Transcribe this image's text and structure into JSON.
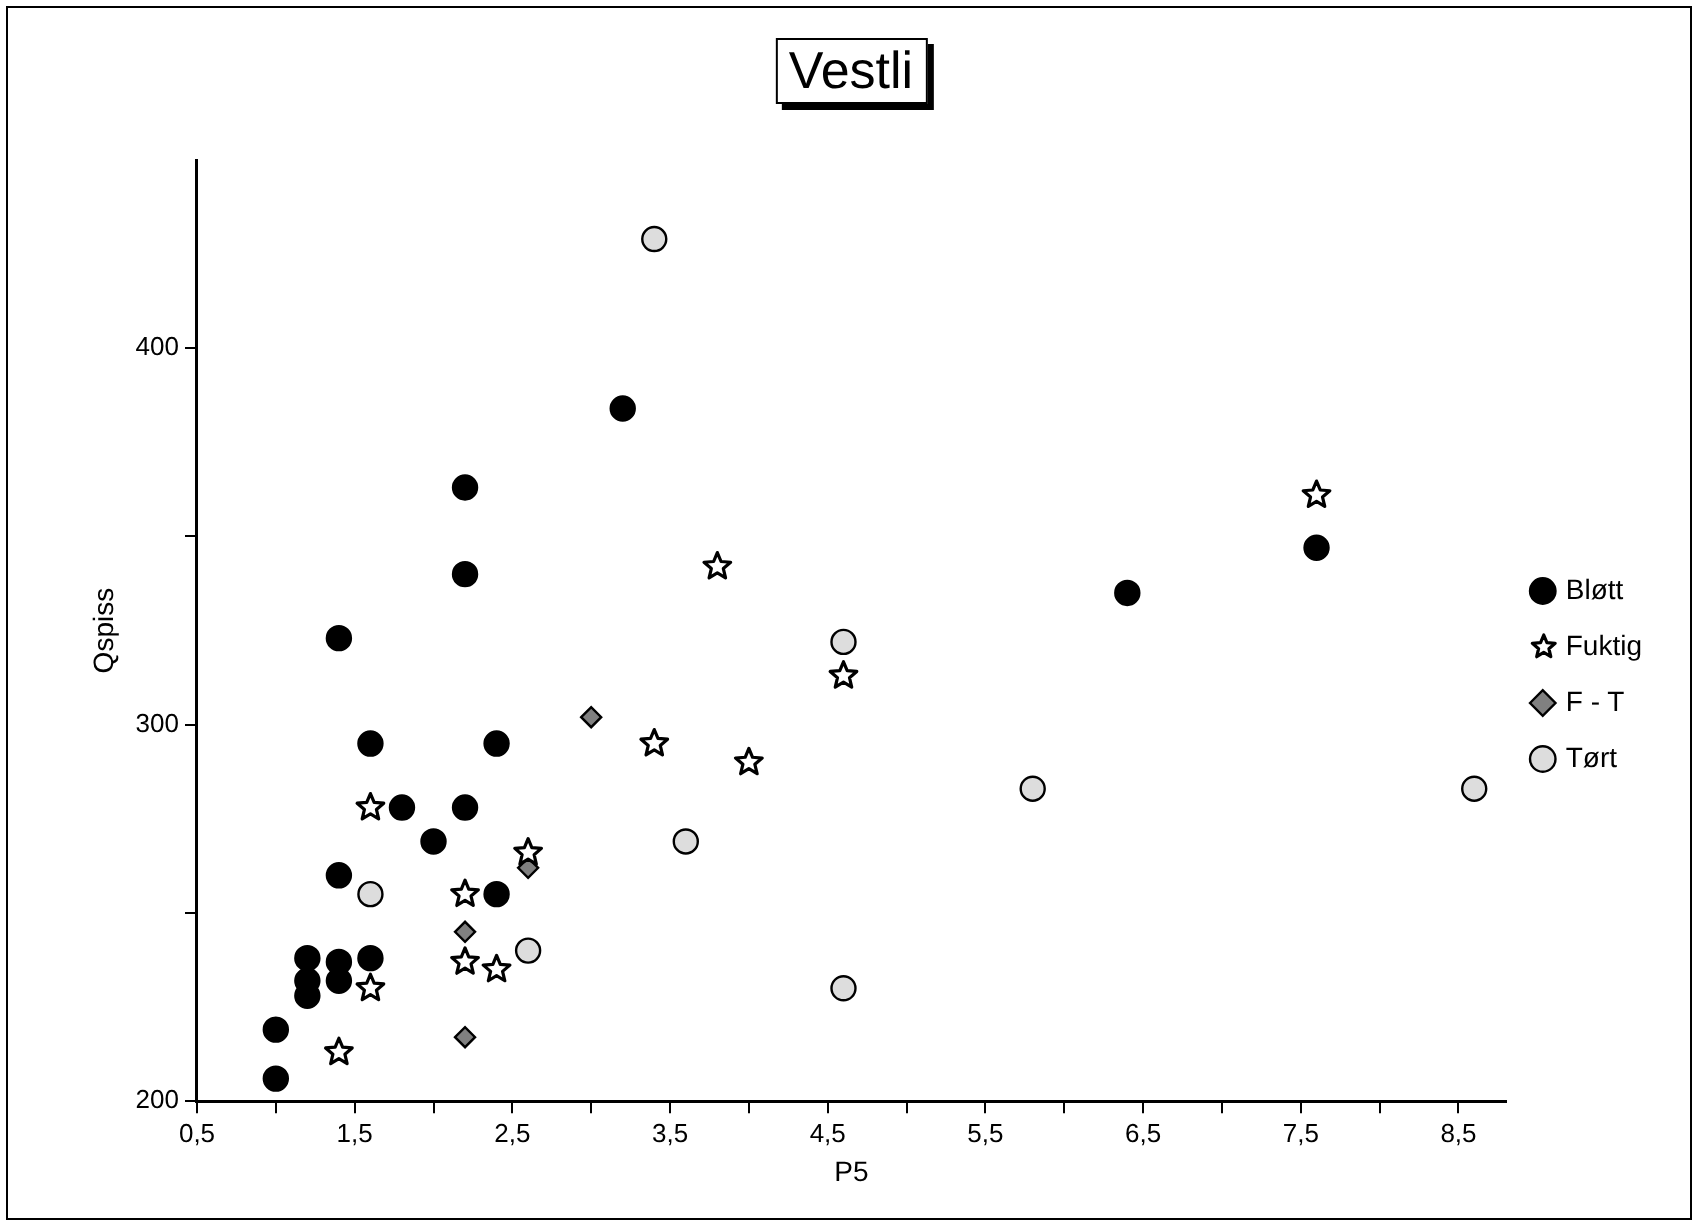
{
  "chart_data": {
    "type": "scatter",
    "title": "Vestli",
    "xlabel": "P5",
    "ylabel": "Qspiss",
    "xlim": [
      0.5,
      8.8
    ],
    "ylim": [
      200,
      450
    ],
    "xticks": [
      {
        "value": 0.5,
        "label": "0,5"
      },
      {
        "value": 1,
        "label": null
      },
      {
        "value": 1.5,
        "label": "1,5"
      },
      {
        "value": 2,
        "label": null
      },
      {
        "value": 2.5,
        "label": "2,5"
      },
      {
        "value": 3,
        "label": null
      },
      {
        "value": 3.5,
        "label": "3,5"
      },
      {
        "value": 4,
        "label": null
      },
      {
        "value": 4.5,
        "label": "4,5"
      },
      {
        "value": 5,
        "label": null
      },
      {
        "value": 5.5,
        "label": "5,5"
      },
      {
        "value": 6,
        "label": null
      },
      {
        "value": 6.5,
        "label": "6,5"
      },
      {
        "value": 7,
        "label": null
      },
      {
        "value": 7.5,
        "label": "7,5"
      },
      {
        "value": 8,
        "label": null
      },
      {
        "value": 8.5,
        "label": "8,5"
      }
    ],
    "yticks": [
      200,
      {
        "value": 250,
        "label": null
      },
      300,
      {
        "value": 350,
        "label": null
      },
      400
    ],
    "grid": false,
    "legend": "right",
    "series": [
      {
        "name": "Bløtt",
        "color": "#000000",
        "marker": "circle",
        "x": [
          1.0,
          1.0,
          1.2,
          1.2,
          1.2,
          1.4,
          1.4,
          1.4,
          1.4,
          1.6,
          1.6,
          1.8,
          2.0,
          2.2,
          2.2,
          2.2,
          2.4,
          2.4,
          3.2,
          6.4,
          7.6
        ],
        "values": [
          206,
          219,
          228,
          232,
          238,
          232,
          237,
          260,
          323,
          238,
          295,
          278,
          269,
          278,
          340,
          363,
          295,
          255,
          384,
          335,
          347
        ]
      },
      {
        "name": "Fuktig",
        "color": "#000000",
        "marker": "star",
        "x": [
          1.4,
          1.6,
          1.6,
          2.2,
          2.2,
          2.4,
          2.6,
          3.4,
          3.8,
          4.0,
          4.6,
          7.6
        ],
        "values": [
          213,
          230,
          278,
          255,
          237,
          235,
          266,
          295,
          342,
          290,
          313,
          361
        ]
      },
      {
        "name": "F - T",
        "color": "#808080",
        "marker": "diamond",
        "x": [
          2.2,
          2.2,
          2.6,
          3.0
        ],
        "values": [
          217,
          245,
          262,
          302
        ]
      },
      {
        "name": "Tørt",
        "color": "#dddddd",
        "marker": "circle",
        "x": [
          1.6,
          2.6,
          3.6,
          3.4,
          4.6,
          4.6,
          5.8,
          8.6
        ],
        "values": [
          255,
          240,
          269,
          429,
          322,
          230,
          283,
          283
        ]
      }
    ]
  }
}
